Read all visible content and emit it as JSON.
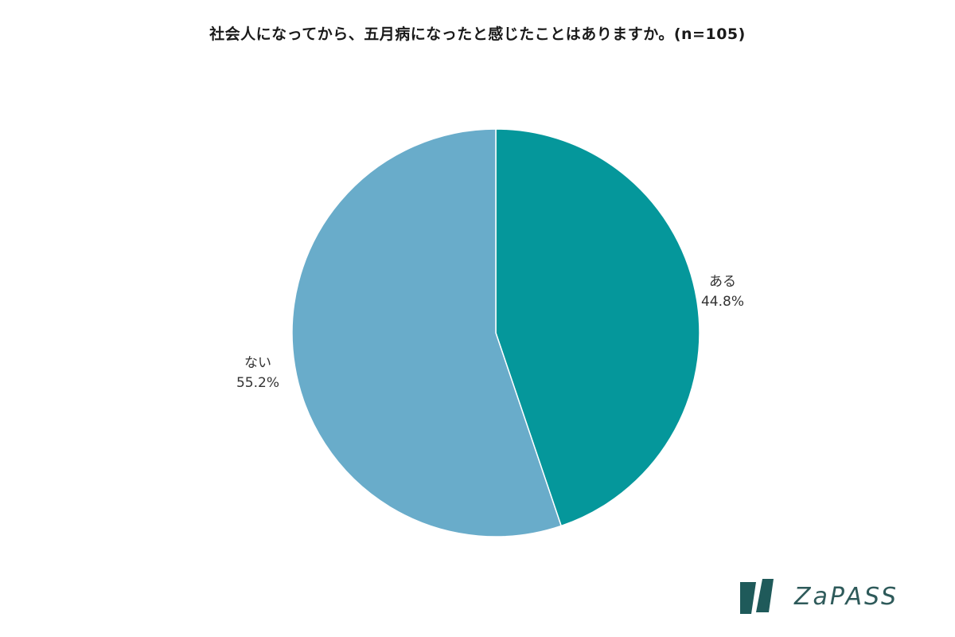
{
  "chart_data": {
    "type": "pie",
    "title": "社会人になってから、五月病になったと感じたことはありますか。(n=105)",
    "slices": [
      {
        "label": "ある",
        "value": 44.8,
        "value_label": "44.8%",
        "color": "#05979b"
      },
      {
        "label": "ない",
        "value": 55.2,
        "value_label": "55.2%",
        "color": "#69acca"
      }
    ],
    "start": "12 o'clock",
    "direction": "clockwise",
    "legend": "none"
  },
  "brand": {
    "name": "ZaPASS",
    "logo_icon": "zapass-logo-icon",
    "color": "#2e5a5a"
  }
}
